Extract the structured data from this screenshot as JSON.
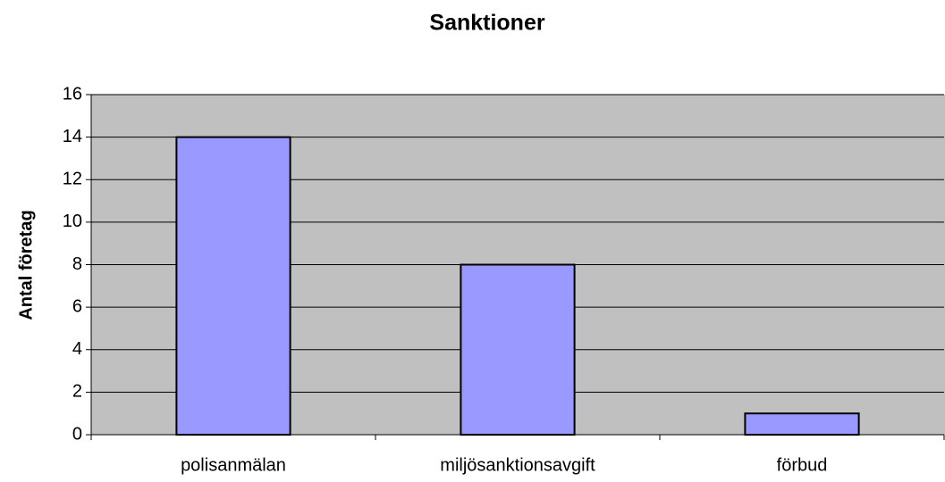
{
  "chart_data": {
    "type": "bar",
    "title": "Sanktioner",
    "y_label": "Antal företag",
    "categories": [
      "polisanmälan",
      "miljösanktionsavgift",
      "förbud"
    ],
    "values": [
      14,
      8,
      1
    ],
    "color": "#9999ff",
    "ylim": [
      0,
      16
    ],
    "yticks": [
      0,
      2,
      4,
      6,
      8,
      10,
      12,
      14,
      16
    ],
    "grid": true
  }
}
